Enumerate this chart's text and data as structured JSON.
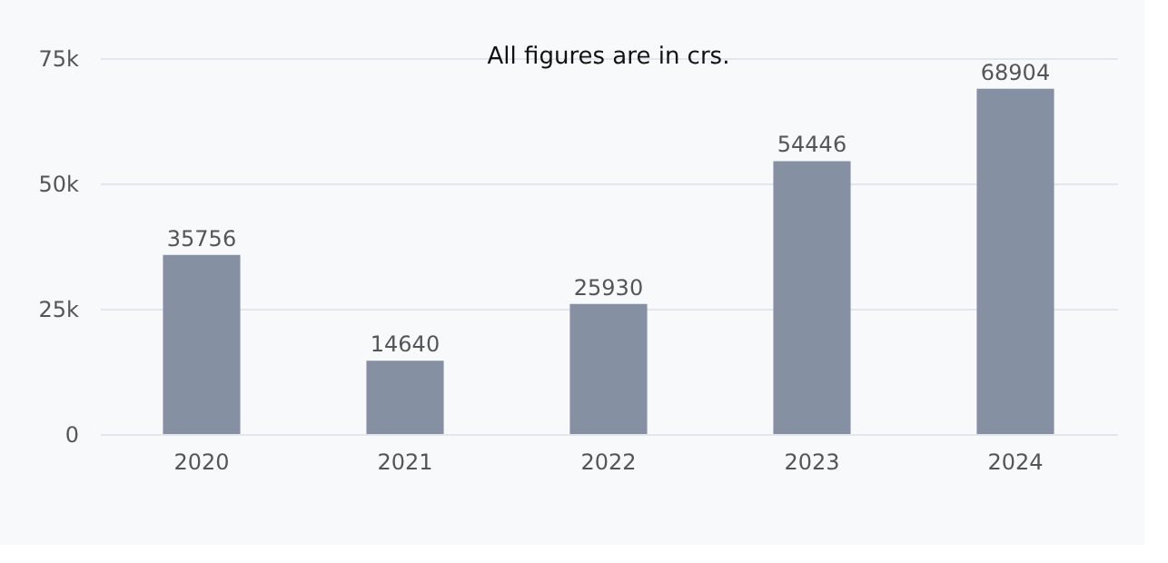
{
  "chart_data": {
    "type": "bar",
    "title": "All figures are in crs.",
    "categories": [
      "2020",
      "2021",
      "2022",
      "2023",
      "2024"
    ],
    "values": [
      35756,
      14640,
      25930,
      54446,
      68904
    ],
    "color": "#8591a3",
    "ylim": [
      0,
      75000
    ],
    "yticks": [
      {
        "value": 0,
        "label": "0"
      },
      {
        "value": 25000,
        "label": "25k"
      },
      {
        "value": 50000,
        "label": "50k"
      },
      {
        "value": 75000,
        "label": "75k"
      }
    ],
    "grid": "y",
    "data_labels": true
  }
}
